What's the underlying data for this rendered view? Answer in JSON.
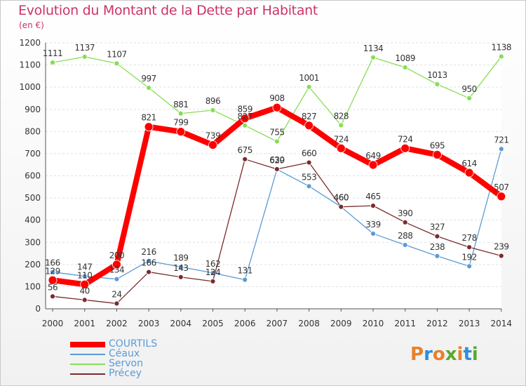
{
  "header": {
    "title": "Evolution du Montant de la Dette par Habitant",
    "unit": "(en €)"
  },
  "brand": {
    "logo_text": "Proxiti",
    "logo_colors": [
      "#e8812a",
      "#2f8fd6",
      "#e8812a",
      "#5aa832",
      "#e8812a",
      "#2f8fd6",
      "#5aa832"
    ]
  },
  "chart_data": {
    "type": "line",
    "title": "Evolution du Montant de la Dette par Habitant",
    "ylabel": "(en €)",
    "xlabel": "",
    "x": [
      "2000",
      "2001",
      "2002",
      "2003",
      "2004",
      "2005",
      "2006",
      "2007",
      "2008",
      "2009",
      "2010",
      "2011",
      "2012",
      "2013",
      "2014"
    ],
    "ylim": [
      0,
      1200
    ],
    "yticks": [
      0,
      100,
      200,
      300,
      400,
      500,
      600,
      700,
      800,
      900,
      1000,
      1100,
      1200
    ],
    "grid": "horizontal",
    "legend_position": "bottom-left",
    "series": [
      {
        "name": "COURTILS",
        "color": "#ff0000",
        "values": [
          129,
          110,
          200,
          821,
          799,
          739,
          859,
          908,
          827,
          724,
          649,
          724,
          695,
          614,
          507
        ]
      },
      {
        "name": "Céaux",
        "color": "#5b9bd5",
        "values": [
          166,
          147,
          134,
          216,
          189,
          162,
          131,
          629,
          553,
          460,
          339,
          288,
          238,
          192,
          721
        ]
      },
      {
        "name": "Servon",
        "color": "#88dd55",
        "values": [
          1111,
          1137,
          1107,
          997,
          881,
          896,
          827,
          755,
          1001,
          828,
          1134,
          1089,
          1013,
          950,
          1138
        ]
      },
      {
        "name": "Précey",
        "color": "#7a2b2b",
        "values": [
          56,
          40,
          24,
          166,
          143,
          124,
          675,
          630,
          660,
          460,
          465,
          390,
          327,
          278,
          239
        ]
      }
    ]
  }
}
